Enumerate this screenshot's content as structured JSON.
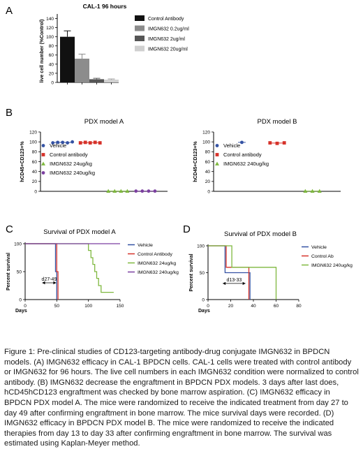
{
  "panels": {
    "A": {
      "letter": "A",
      "chart_data": {
        "type": "bar",
        "title": "CAL-1 96 hours",
        "ylabel": "live cell number (%Control)",
        "ylim": [
          0,
          150
        ],
        "yticks": [
          "0",
          "20",
          "40",
          "60",
          "80",
          "100",
          "120",
          "140"
        ],
        "yticks_values": [
          0,
          20,
          40,
          60,
          80,
          100,
          120,
          140
        ],
        "grid": false,
        "legend": "top-right",
        "series": [
          {
            "name": "Control Antibody",
            "value": 100,
            "error": 13,
            "color": "#111111"
          },
          {
            "name": "IMGN632 0.2ug/ml",
            "value": 52,
            "error": 10,
            "color": "#8c8c8c"
          },
          {
            "name": "IMGN632 2ug/ml",
            "value": 7,
            "error": 2,
            "color": "#555555"
          },
          {
            "name": "IMGN632 20ug/ml",
            "value": 6,
            "error": 1.5,
            "color": "#d0d0d0"
          }
        ]
      }
    },
    "B": {
      "letter": "B",
      "charts": [
        {
          "type": "scatter",
          "title": "PDX model A",
          "ylabel": "hCD45+CD123+%",
          "ylim": [
            0,
            120
          ],
          "yticks": [
            "0",
            "20",
            "40",
            "60",
            "80",
            "100",
            "120"
          ],
          "yticks_values": [
            0,
            20,
            40,
            60,
            80,
            100,
            120
          ],
          "legend": "left",
          "series": [
            {
              "name": "Vehicle",
              "marker": "circle",
              "color": "#3452a3",
              "position": 1,
              "values": [
                98,
                99,
                99,
                98,
                100
              ]
            },
            {
              "name": "Control antibody",
              "marker": "square",
              "color": "#d6322a",
              "position": 2,
              "values": [
                98,
                99,
                98,
                99,
                98
              ]
            },
            {
              "name": "IMGN632 24ug/kg",
              "marker": "triangle",
              "color": "#7fb83f",
              "position": 3,
              "values": [
                0.5,
                0.5,
                0.5,
                0.5
              ]
            },
            {
              "name": "IMGN632 240ug/kg",
              "marker": "circle",
              "color": "#7b3fa0",
              "position": 4,
              "values": [
                0.5,
                0.5,
                0.5,
                0.5
              ]
            }
          ]
        },
        {
          "type": "scatter",
          "title": "PDX model B",
          "ylabel": "hCD45+CD123+%",
          "ylim": [
            0,
            120
          ],
          "yticks": [
            "0",
            "20",
            "40",
            "60",
            "80",
            "100",
            "120"
          ],
          "yticks_values": [
            0,
            20,
            40,
            60,
            80,
            100,
            120
          ],
          "legend": "left",
          "series": [
            {
              "name": "Vehicle",
              "marker": "circle",
              "color": "#3452a3",
              "position": 1,
              "values": [
                99
              ]
            },
            {
              "name": "Control antibody",
              "marker": "square",
              "color": "#d6322a",
              "position": 2,
              "values": [
                98,
                97,
                98
              ]
            },
            {
              "name": "IMGN632 240ug/kg",
              "marker": "triangle",
              "color": "#7fb83f",
              "position": 3,
              "values": [
                0.5,
                0.5,
                0.5
              ]
            }
          ]
        }
      ]
    },
    "C": {
      "letter": "C",
      "chart_data": {
        "type": "line",
        "title": "Survival of PDX model A",
        "xlabel": "Days",
        "ylabel": "Percent survival",
        "xlim": [
          0,
          150
        ],
        "ylim": [
          0,
          100
        ],
        "xticks": [
          "0",
          "50",
          "100",
          "150"
        ],
        "xticks_values": [
          0,
          50,
          100,
          150
        ],
        "yticks": [
          "0",
          "50",
          "100"
        ],
        "yticks_values": [
          0,
          50,
          100
        ],
        "annotation": "d27-49",
        "annotation_range": [
          27,
          49
        ],
        "annotation_y": 30,
        "legend": "right",
        "series": [
          {
            "name": "Vehicle",
            "color": "#3452a3",
            "points": [
              [
                0,
                100
              ],
              [
                48,
                100
              ],
              [
                48,
                50
              ],
              [
                50,
                50
              ],
              [
                50,
                0
              ]
            ]
          },
          {
            "name": "Control Antibody",
            "color": "#d6322a",
            "points": [
              [
                0,
                100
              ],
              [
                50,
                100
              ],
              [
                50,
                50
              ],
              [
                52,
                50
              ],
              [
                52,
                0
              ]
            ]
          },
          {
            "name": "IMGN632 24ug/kg",
            "color": "#7fb83f",
            "points": [
              [
                0,
                100
              ],
              [
                100,
                100
              ],
              [
                100,
                88
              ],
              [
                104,
                88
              ],
              [
                104,
                75
              ],
              [
                107,
                75
              ],
              [
                107,
                63
              ],
              [
                110,
                63
              ],
              [
                110,
                50
              ],
              [
                113,
                50
              ],
              [
                113,
                38
              ],
              [
                116,
                38
              ],
              [
                116,
                25
              ],
              [
                120,
                25
              ],
              [
                120,
                13
              ],
              [
                140,
                13
              ],
              [
                140,
                13
              ]
            ]
          },
          {
            "name": "IMGN632 240ug/kg",
            "color": "#7b3fa0",
            "points": [
              [
                0,
                100
              ],
              [
                150,
                100
              ]
            ]
          }
        ]
      }
    },
    "D": {
      "letter": "D",
      "chart_data": {
        "type": "line",
        "title": "Survival of PDX model B",
        "xlabel": "Days",
        "ylabel": "Percent survival",
        "xlim": [
          0,
          80
        ],
        "ylim": [
          0,
          100
        ],
        "xticks": [
          "0",
          "20",
          "40",
          "60",
          "80"
        ],
        "xticks_values": [
          0,
          20,
          40,
          60,
          80
        ],
        "yticks": [
          "0",
          "50",
          "100"
        ],
        "yticks_values": [
          0,
          50,
          100
        ],
        "annotation": "d13-33",
        "annotation_range": [
          13,
          33
        ],
        "annotation_y": 30,
        "legend": "right",
        "series": [
          {
            "name": "Vehicle",
            "color": "#3452a3",
            "points": [
              [
                0,
                100
              ],
              [
                15,
                100
              ],
              [
                15,
                50
              ],
              [
                37,
                50
              ],
              [
                37,
                0
              ]
            ]
          },
          {
            "name": "Control Ab",
            "color": "#d6322a",
            "points": [
              [
                0,
                100
              ],
              [
                16,
                100
              ],
              [
                16,
                60
              ],
              [
                36,
                60
              ],
              [
                36,
                0
              ]
            ]
          },
          {
            "name": "IMGN632 240ug/kg",
            "color": "#7fb83f",
            "points": [
              [
                0,
                100
              ],
              [
                21,
                100
              ],
              [
                21,
                60
              ],
              [
                39,
                60
              ],
              [
                39,
                60
              ],
              [
                60,
                60
              ],
              [
                60,
                0
              ]
            ]
          }
        ]
      }
    }
  },
  "caption": {
    "text": "Figure 1: Pre-clinical studies of CD123-targeting antibody-drug conjugate IMGN632 in BPDCN models. (A) IMGN632 efficacy in CAL-1 BPDCN cells. CAL-1 cells were treated with control antibody or IMGN632 for 96 hours. The live cell numbers in each IMGN632 condition were normalized to control antibody. (B) IMGN632 decrease the engraftment in BPDCN PDX models. 3 days after last does, hCD45hCD123 engraftment was checked by bone marrow aspiration. (C) IMGN632 efficacy in BPDCN PDX model A. The mice were randomized to receive the indicated treatment from day 27 to day 49 after confirming engraftment in bone marrow. The mice survival days were recorded. (D) IMGN632 efficacy in BPDCN PDX model B. The mice were randomized to receive the indicated therapies from day 13 to day 33 after confirming engraftment in bone marrow. The survival was estimated using Kaplan-Meyer method."
  }
}
